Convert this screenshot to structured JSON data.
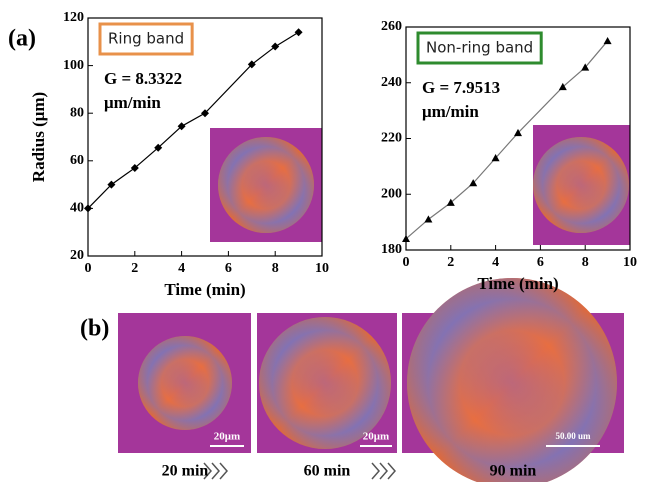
{
  "chart_data": [
    {
      "type": "line",
      "label": "Ring band",
      "label_color": "#e8914a",
      "annotations": [
        "G = 8.3322",
        "μm/min"
      ],
      "xlabel": "Time (min)",
      "ylabel": "Radius (μm)",
      "x": [
        0,
        1,
        2,
        3,
        4,
        5,
        7,
        8,
        9
      ],
      "series": [
        {
          "color": "#000000",
          "marker": "diamond",
          "values": [
            40,
            50,
            57,
            65.5,
            74.5,
            80,
            100.5,
            108,
            114
          ]
        }
      ],
      "xlim": [
        0,
        10
      ],
      "xticks": [
        0,
        2,
        4,
        6,
        8,
        10
      ],
      "ylim": [
        20,
        120
      ],
      "yticks": [
        20,
        40,
        60,
        80,
        100,
        120
      ]
    },
    {
      "type": "line",
      "label": "Non-ring band",
      "label_color": "#2e8b2e",
      "annotations": [
        "G = 7.9513",
        "μm/min"
      ],
      "xlabel": "Time (min)",
      "x": [
        0,
        1,
        2,
        3,
        4,
        5,
        7,
        8,
        9
      ],
      "series": [
        {
          "color": "#777777",
          "marker": "triangle",
          "values": [
            184,
            191,
            197,
            204,
            213,
            222,
            238.5,
            245.5,
            255
          ]
        }
      ],
      "xlim": [
        0,
        10
      ],
      "xticks": [
        0,
        2,
        4,
        6,
        8,
        10
      ],
      "ylim": [
        180,
        260
      ],
      "yticks": [
        180,
        200,
        220,
        240,
        260
      ]
    }
  ],
  "panel_labels": [
    "(a)",
    "(b)"
  ],
  "micrographs": [
    {
      "time": "20 min",
      "scale": "20μm"
    },
    {
      "time": "60 min",
      "scale": "20μm"
    },
    {
      "time": "90 min",
      "scale": "50.00 um"
    }
  ]
}
